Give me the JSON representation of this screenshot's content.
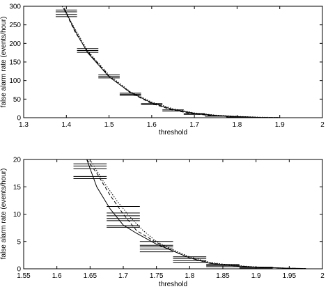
{
  "chart_data": [
    {
      "type": "line",
      "xlabel": "threshold",
      "ylabel": "false alarm rate (events/hour)",
      "xlim": [
        1.3,
        2
      ],
      "ylim": [
        0,
        300
      ],
      "xticks": [
        "1.3",
        "1.4",
        "1.5",
        "1.6",
        "1.7",
        "1.8",
        "1.9",
        "2"
      ],
      "xtick_values": [
        1.3,
        1.4,
        1.5,
        1.6,
        1.7,
        1.8,
        1.9,
        2.0
      ],
      "yticks": [
        "0",
        "50",
        "100",
        "150",
        "200",
        "250",
        "300"
      ],
      "ytick_values": [
        0,
        50,
        100,
        150,
        200,
        250,
        300
      ],
      "grid": false,
      "series": [
        {
          "style": "solid",
          "x": [
            1.395,
            1.42,
            1.45,
            1.5,
            1.55,
            1.6,
            1.65,
            1.7,
            1.75,
            1.8,
            1.85,
            1.9
          ],
          "y": [
            295,
            235,
            175,
            110,
            68,
            40,
            22,
            12,
            6,
            3,
            1,
            0.5
          ]
        },
        {
          "style": "dashed",
          "x": [
            1.395,
            1.42,
            1.45,
            1.5,
            1.55,
            1.6,
            1.65,
            1.7,
            1.75,
            1.8,
            1.85,
            1.9
          ],
          "y": [
            292,
            232,
            178,
            112,
            67,
            38,
            20,
            10,
            5,
            2,
            1,
            0.3
          ]
        },
        {
          "style": "dotted",
          "x": [
            1.39,
            1.42,
            1.45,
            1.5,
            1.55,
            1.6,
            1.65,
            1.7,
            1.75,
            1.8,
            1.85,
            1.9
          ],
          "y": [
            300,
            240,
            180,
            115,
            70,
            42,
            24,
            13,
            7,
            3.5,
            1.5,
            0.6
          ]
        }
      ],
      "error_bars": [
        {
          "y": 290,
          "x0": 1.375,
          "x1": 1.425
        },
        {
          "y": 285,
          "x0": 1.375,
          "x1": 1.425
        },
        {
          "y": 278,
          "x0": 1.375,
          "x1": 1.425
        },
        {
          "y": 272,
          "x0": 1.375,
          "x1": 1.425
        },
        {
          "y": 186,
          "x0": 1.425,
          "x1": 1.475
        },
        {
          "y": 181,
          "x0": 1.425,
          "x1": 1.475
        },
        {
          "y": 176,
          "x0": 1.425,
          "x1": 1.475
        },
        {
          "y": 115,
          "x0": 1.475,
          "x1": 1.525
        },
        {
          "y": 111,
          "x0": 1.475,
          "x1": 1.525
        },
        {
          "y": 107,
          "x0": 1.475,
          "x1": 1.525
        },
        {
          "y": 66,
          "x0": 1.525,
          "x1": 1.575
        },
        {
          "y": 63,
          "x0": 1.525,
          "x1": 1.575
        },
        {
          "y": 60,
          "x0": 1.525,
          "x1": 1.575
        },
        {
          "y": 38,
          "x0": 1.575,
          "x1": 1.625
        },
        {
          "y": 35,
          "x0": 1.575,
          "x1": 1.625
        },
        {
          "y": 21,
          "x0": 1.625,
          "x1": 1.675
        },
        {
          "y": 18,
          "x0": 1.625,
          "x1": 1.675
        },
        {
          "y": 11,
          "x0": 1.675,
          "x1": 1.725
        },
        {
          "y": 9,
          "x0": 1.675,
          "x1": 1.725
        },
        {
          "y": 5,
          "x0": 1.725,
          "x1": 1.775
        },
        {
          "y": 4,
          "x0": 1.725,
          "x1": 1.775
        },
        {
          "y": 2,
          "x0": 1.775,
          "x1": 1.825
        },
        {
          "y": 1.5,
          "x0": 1.775,
          "x1": 1.825
        }
      ]
    },
    {
      "type": "line",
      "xlabel": "threshold",
      "ylabel": "false alarm rate (events/hour)",
      "xlim": [
        1.55,
        2
      ],
      "ylim": [
        0,
        20
      ],
      "xticks": [
        "1.55",
        "1.6",
        "1.65",
        "1.7",
        "1.75",
        "1.8",
        "1.85",
        "1.9",
        "1.95",
        "2"
      ],
      "xtick_values": [
        1.55,
        1.6,
        1.65,
        1.7,
        1.75,
        1.8,
        1.85,
        1.9,
        1.95,
        2.0
      ],
      "yticks": [
        "0",
        "5",
        "10",
        "15",
        "20"
      ],
      "ytick_values": [
        0,
        5,
        10,
        15,
        20
      ],
      "grid": false,
      "series": [
        {
          "style": "solid",
          "x": [
            1.645,
            1.66,
            1.68,
            1.7,
            1.72,
            1.75,
            1.78,
            1.8,
            1.83,
            1.86,
            1.9,
            1.95,
            1.975
          ],
          "y": [
            20,
            15,
            11,
            8,
            6.5,
            4.5,
            3,
            2,
            1,
            0.6,
            0.3,
            0.1,
            0.05
          ]
        },
        {
          "style": "dashed",
          "x": [
            1.645,
            1.66,
            1.68,
            1.7,
            1.72,
            1.75,
            1.78,
            1.8,
            1.83,
            1.86,
            1.9,
            1.95,
            1.975
          ],
          "y": [
            20,
            17.5,
            13.5,
            10,
            7,
            4.8,
            3,
            2,
            1.1,
            0.6,
            0.3,
            0.1,
            0.05
          ]
        },
        {
          "style": "dotted",
          "x": [
            1.65,
            1.67,
            1.69,
            1.71,
            1.73,
            1.75,
            1.78,
            1.8,
            1.83,
            1.86,
            1.9,
            1.95,
            1.975
          ],
          "y": [
            20,
            16,
            12.5,
            9.5,
            7,
            5,
            3.2,
            2.2,
            1.2,
            0.7,
            0.35,
            0.1,
            0.05
          ]
        }
      ],
      "error_bars": [
        {
          "y": 19.2,
          "x0": 1.625,
          "x1": 1.675
        },
        {
          "y": 18.8,
          "x0": 1.625,
          "x1": 1.675
        },
        {
          "y": 18.3,
          "x0": 1.625,
          "x1": 1.675
        },
        {
          "y": 16.9,
          "x0": 1.625,
          "x1": 1.675
        },
        {
          "y": 16.5,
          "x0": 1.625,
          "x1": 1.675
        },
        {
          "y": 11.4,
          "x0": 1.675,
          "x1": 1.725
        },
        {
          "y": 10.2,
          "x0": 1.675,
          "x1": 1.725
        },
        {
          "y": 9.7,
          "x0": 1.675,
          "x1": 1.725
        },
        {
          "y": 9.2,
          "x0": 1.675,
          "x1": 1.725
        },
        {
          "y": 8.8,
          "x0": 1.675,
          "x1": 1.725
        },
        {
          "y": 7.9,
          "x0": 1.675,
          "x1": 1.725
        },
        {
          "y": 7.6,
          "x0": 1.675,
          "x1": 1.725
        },
        {
          "y": 5.0,
          "x0": 1.725,
          "x1": 1.775
        },
        {
          "y": 4.3,
          "x0": 1.725,
          "x1": 1.775
        },
        {
          "y": 4.0,
          "x0": 1.725,
          "x1": 1.775
        },
        {
          "y": 3.6,
          "x0": 1.725,
          "x1": 1.775
        },
        {
          "y": 3.1,
          "x0": 1.725,
          "x1": 1.775
        },
        {
          "y": 2.2,
          "x0": 1.775,
          "x1": 1.825
        },
        {
          "y": 1.9,
          "x0": 1.775,
          "x1": 1.825
        },
        {
          "y": 1.5,
          "x0": 1.775,
          "x1": 1.825
        },
        {
          "y": 1.2,
          "x0": 1.775,
          "x1": 1.825
        },
        {
          "y": 0.8,
          "x0": 1.825,
          "x1": 1.875
        },
        {
          "y": 0.6,
          "x0": 1.825,
          "x1": 1.875
        },
        {
          "y": 0.4,
          "x0": 1.825,
          "x1": 1.875
        },
        {
          "y": 0.3,
          "x0": 1.875,
          "x1": 1.925
        },
        {
          "y": 0.15,
          "x0": 1.875,
          "x1": 1.925
        }
      ]
    }
  ]
}
